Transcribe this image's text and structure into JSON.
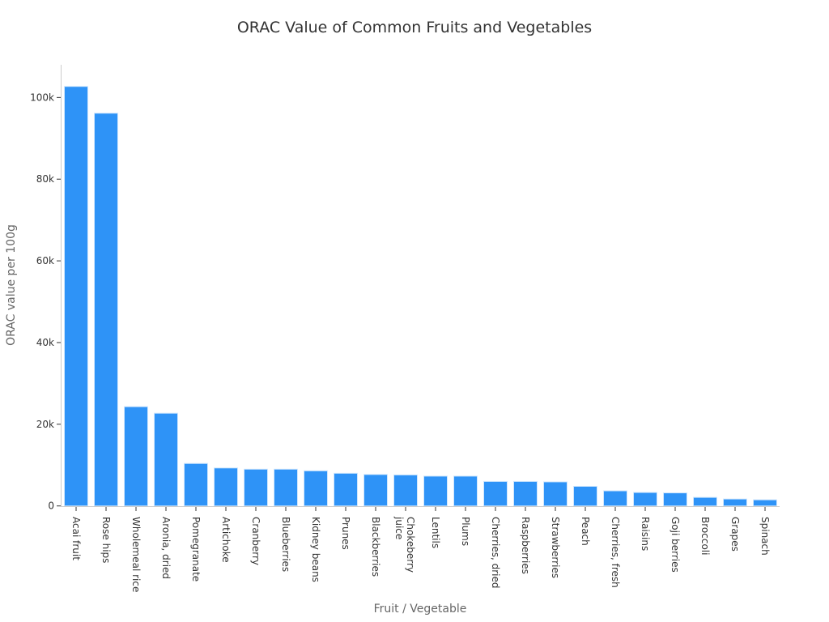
{
  "chart_data": {
    "type": "bar",
    "title": "ORAC Value of Common Fruits and Vegetables",
    "xlabel": "Fruit / Vegetable",
    "ylabel": "ORAC value per 100g",
    "ylim": [
      0,
      108000
    ],
    "yticks": [
      0,
      20000,
      40000,
      60000,
      80000,
      100000
    ],
    "ytick_labels": [
      "0",
      "20k",
      "40k",
      "60k",
      "80k",
      "100k"
    ],
    "grid": false,
    "bar_color": "#2e93f7",
    "categories": [
      "Acai fruit",
      "Rose hips",
      "Wholemeal rice",
      "Aronia, dried",
      "Pomegranate",
      "Artichoke",
      "Cranberry",
      "Blueberries",
      "Kidney beans",
      "Prunes",
      "Blackberries",
      "Chokeberry juice",
      "Lentils",
      "Plums",
      "Cherries, dried",
      "Raspberries",
      "Strawberries",
      "Peach",
      "Cherries, fresh",
      "Raisins",
      "Goji berries",
      "Broccoli",
      "Grapes",
      "Spinach"
    ],
    "values": [
      102700,
      96150,
      24300,
      22700,
      10400,
      9300,
      9000,
      9000,
      8600,
      8000,
      7700,
      7600,
      7300,
      7300,
      6000,
      6000,
      5900,
      4800,
      3700,
      3300,
      3200,
      2100,
      1700,
      1500
    ]
  }
}
